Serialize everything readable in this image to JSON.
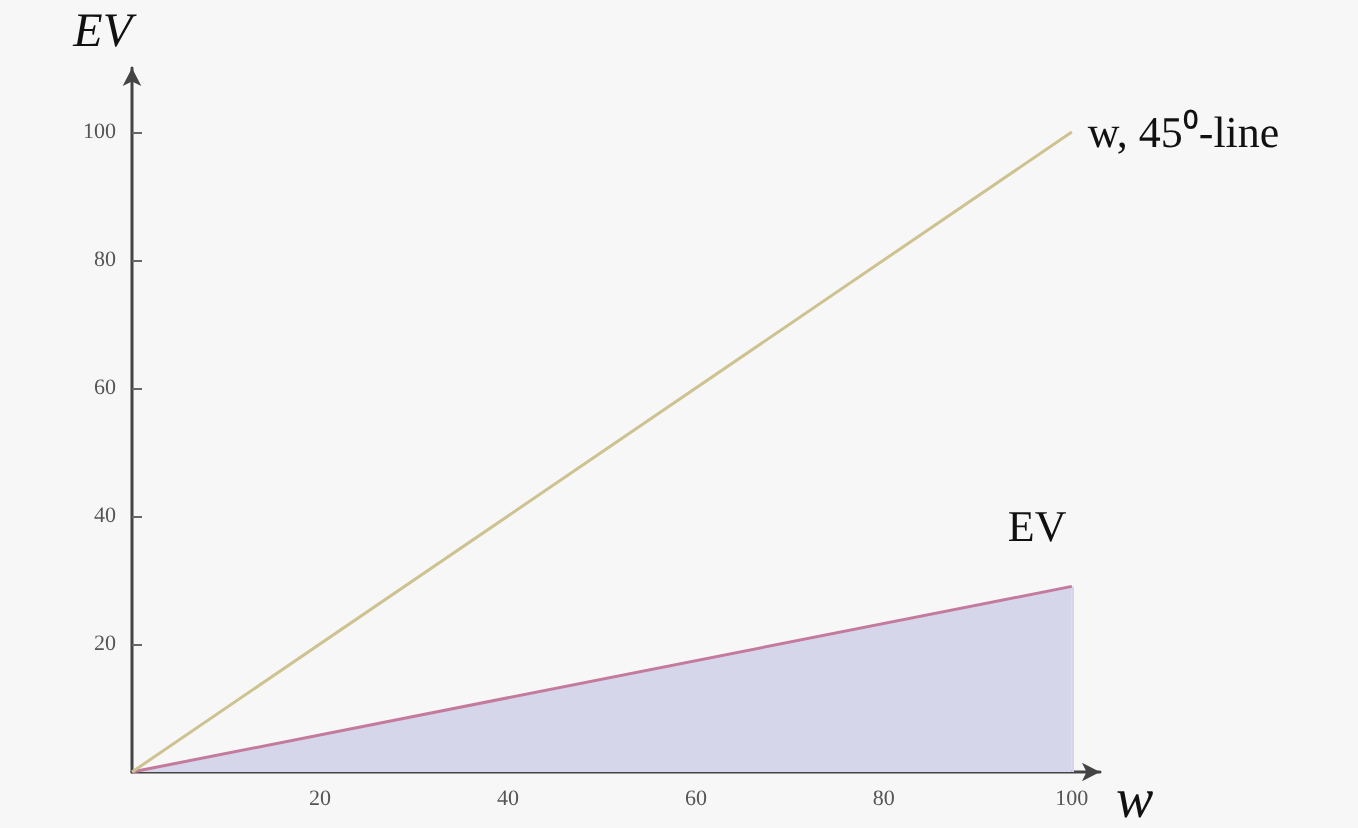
{
  "chart_data": {
    "type": "line",
    "xlabel": "w",
    "ylabel": "EV",
    "x": [
      0,
      100
    ],
    "series": [
      {
        "name": "w, 45⁰-line",
        "color": "#cdc290",
        "values": [
          0,
          100
        ]
      },
      {
        "name": "EV",
        "type": "area",
        "color": "#c47a9c",
        "values": [
          0,
          29
        ]
      }
    ],
    "xlim": [
      0,
      103
    ],
    "ylim": [
      0,
      110
    ],
    "xticks": [
      20,
      40,
      60,
      80,
      100
    ],
    "yticks": [
      20,
      40,
      60,
      80,
      100
    ],
    "grid": false,
    "legend": false,
    "marker": "none",
    "line_style": "solid"
  }
}
